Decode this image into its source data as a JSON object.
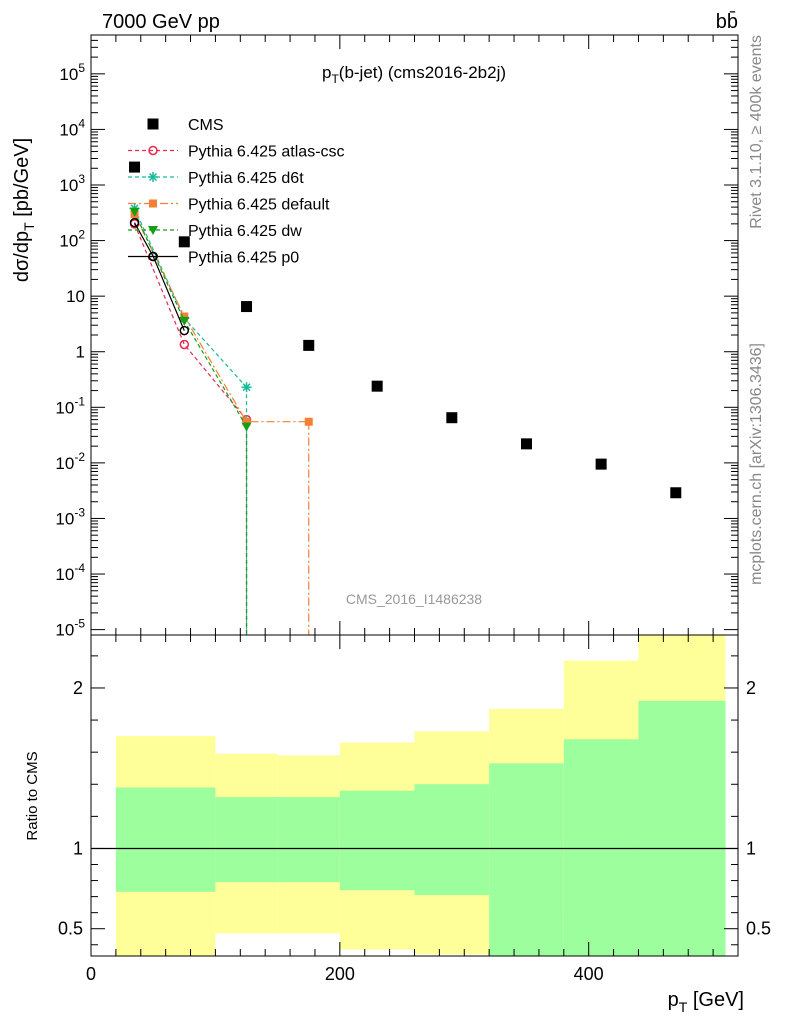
{
  "header": {
    "energy_label": "7000 GeV pp",
    "process_label": "bb̄"
  },
  "side_labels": {
    "rivet": "Rivet 3.1.10, ≥ 400k events",
    "mcplots": "mcplots.cern.ch [arXiv:1306.3436]"
  },
  "chart_data": [
    {
      "type": "scatter",
      "title": "pT(b-jet) (cms2016-2b2j)",
      "watermark": "CMS_2016_I1486238",
      "ylabel": "dσ/dpT [pb/GeV]",
      "xlabel": "",
      "xlim": [
        0,
        520
      ],
      "ylim": [
        8e-06,
        500000
      ],
      "yscale": "log",
      "x_ticks": [
        0,
        200,
        400
      ],
      "y_ticks": [
        {
          "value": 1e-05,
          "label": "10^-5"
        },
        {
          "value": 0.0001,
          "label": "10^-4"
        },
        {
          "value": 0.001,
          "label": "10^-3"
        },
        {
          "value": 0.01,
          "label": "10^-2"
        },
        {
          "value": 0.1,
          "label": "10^-1"
        },
        {
          "value": 1,
          "label": "1"
        },
        {
          "value": 10,
          "label": "10"
        },
        {
          "value": 100,
          "label": "10^2"
        },
        {
          "value": 1000,
          "label": "10^3"
        },
        {
          "value": 10000,
          "label": "10^4"
        },
        {
          "value": 100000,
          "label": "10^5"
        }
      ],
      "series": [
        {
          "name": "CMS",
          "color": "#000000",
          "style": "data",
          "x": [
            35,
            75,
            125,
            175,
            230,
            290,
            350,
            410,
            470
          ],
          "y": [
            2100,
            95,
            6.5,
            1.3,
            0.24,
            0.065,
            0.022,
            0.0095,
            0.0029
          ]
        },
        {
          "name": "Pythia 6.425 atlas-csc",
          "color": "#e8294b",
          "style": "open-circle",
          "dash": "4,3",
          "x": [
            35,
            75,
            125
          ],
          "y": [
            200,
            1.35,
            0.06
          ]
        },
        {
          "name": "Pythia 6.425 d6t",
          "color": "#19b99a",
          "style": "star",
          "dash": "4,3",
          "x": [
            35,
            75,
            125
          ],
          "y": [
            380,
            4.0,
            0.23
          ]
        },
        {
          "name": "Pythia 6.425 default",
          "color": "#f47f35",
          "style": "square",
          "dash": "8,3,2,3",
          "x": [
            35,
            75,
            125,
            175
          ],
          "y": [
            300,
            4.3,
            0.055,
            0.055
          ]
        },
        {
          "name": "Pythia 6.425 dw",
          "color": "#149e14",
          "style": "triangle-down",
          "dash": "4,3",
          "x": [
            35,
            75,
            125
          ],
          "y": [
            330,
            3.6,
            0.045
          ]
        },
        {
          "name": "Pythia 6.425 p0",
          "color": "#000000",
          "style": "open-circle-solid",
          "dash": "",
          "x": [
            35,
            50,
            75
          ],
          "y": [
            210,
            52,
            2.4
          ]
        }
      ]
    },
    {
      "type": "area",
      "ylabel": "Ratio to CMS",
      "xlabel": "pT [GeV]",
      "xlim": [
        0,
        520
      ],
      "ylim": [
        0.33,
        2.33
      ],
      "x_ticks": [
        0,
        200,
        400
      ],
      "y_ticks": [
        0.5,
        1,
        2
      ],
      "reference_line": 1,
      "bins": [
        {
          "x0": 20,
          "x1": 100,
          "stat_lo": 0.73,
          "stat_hi": 1.38,
          "tot_lo": 0.3,
          "tot_hi": 1.7
        },
        {
          "x0": 100,
          "x1": 150,
          "stat_lo": 0.79,
          "stat_hi": 1.32,
          "tot_lo": 0.47,
          "tot_hi": 1.59
        },
        {
          "x0": 150,
          "x1": 200,
          "stat_lo": 0.79,
          "stat_hi": 1.32,
          "tot_lo": 0.47,
          "tot_hi": 1.58
        },
        {
          "x0": 200,
          "x1": 260,
          "stat_lo": 0.74,
          "stat_hi": 1.36,
          "tot_lo": 0.37,
          "tot_hi": 1.66
        },
        {
          "x0": 260,
          "x1": 320,
          "stat_lo": 0.71,
          "stat_hi": 1.4,
          "tot_lo": 0.34,
          "tot_hi": 1.73
        },
        {
          "x0": 320,
          "x1": 380,
          "stat_lo": 0.3,
          "stat_hi": 1.53,
          "tot_lo": 0.59,
          "tot_hi": 1.87
        },
        {
          "x0": 380,
          "x1": 440,
          "stat_lo": 0.3,
          "stat_hi": 1.68,
          "tot_lo": 0.3,
          "tot_hi": 2.17
        },
        {
          "x0": 440,
          "x1": 510,
          "stat_lo": 0.3,
          "stat_hi": 1.92,
          "tot_lo": 0.3,
          "tot_hi": 2.4
        }
      ],
      "colors": {
        "stat": "#9cfe9c",
        "total": "#ffff99",
        "line": "#000000"
      }
    }
  ]
}
